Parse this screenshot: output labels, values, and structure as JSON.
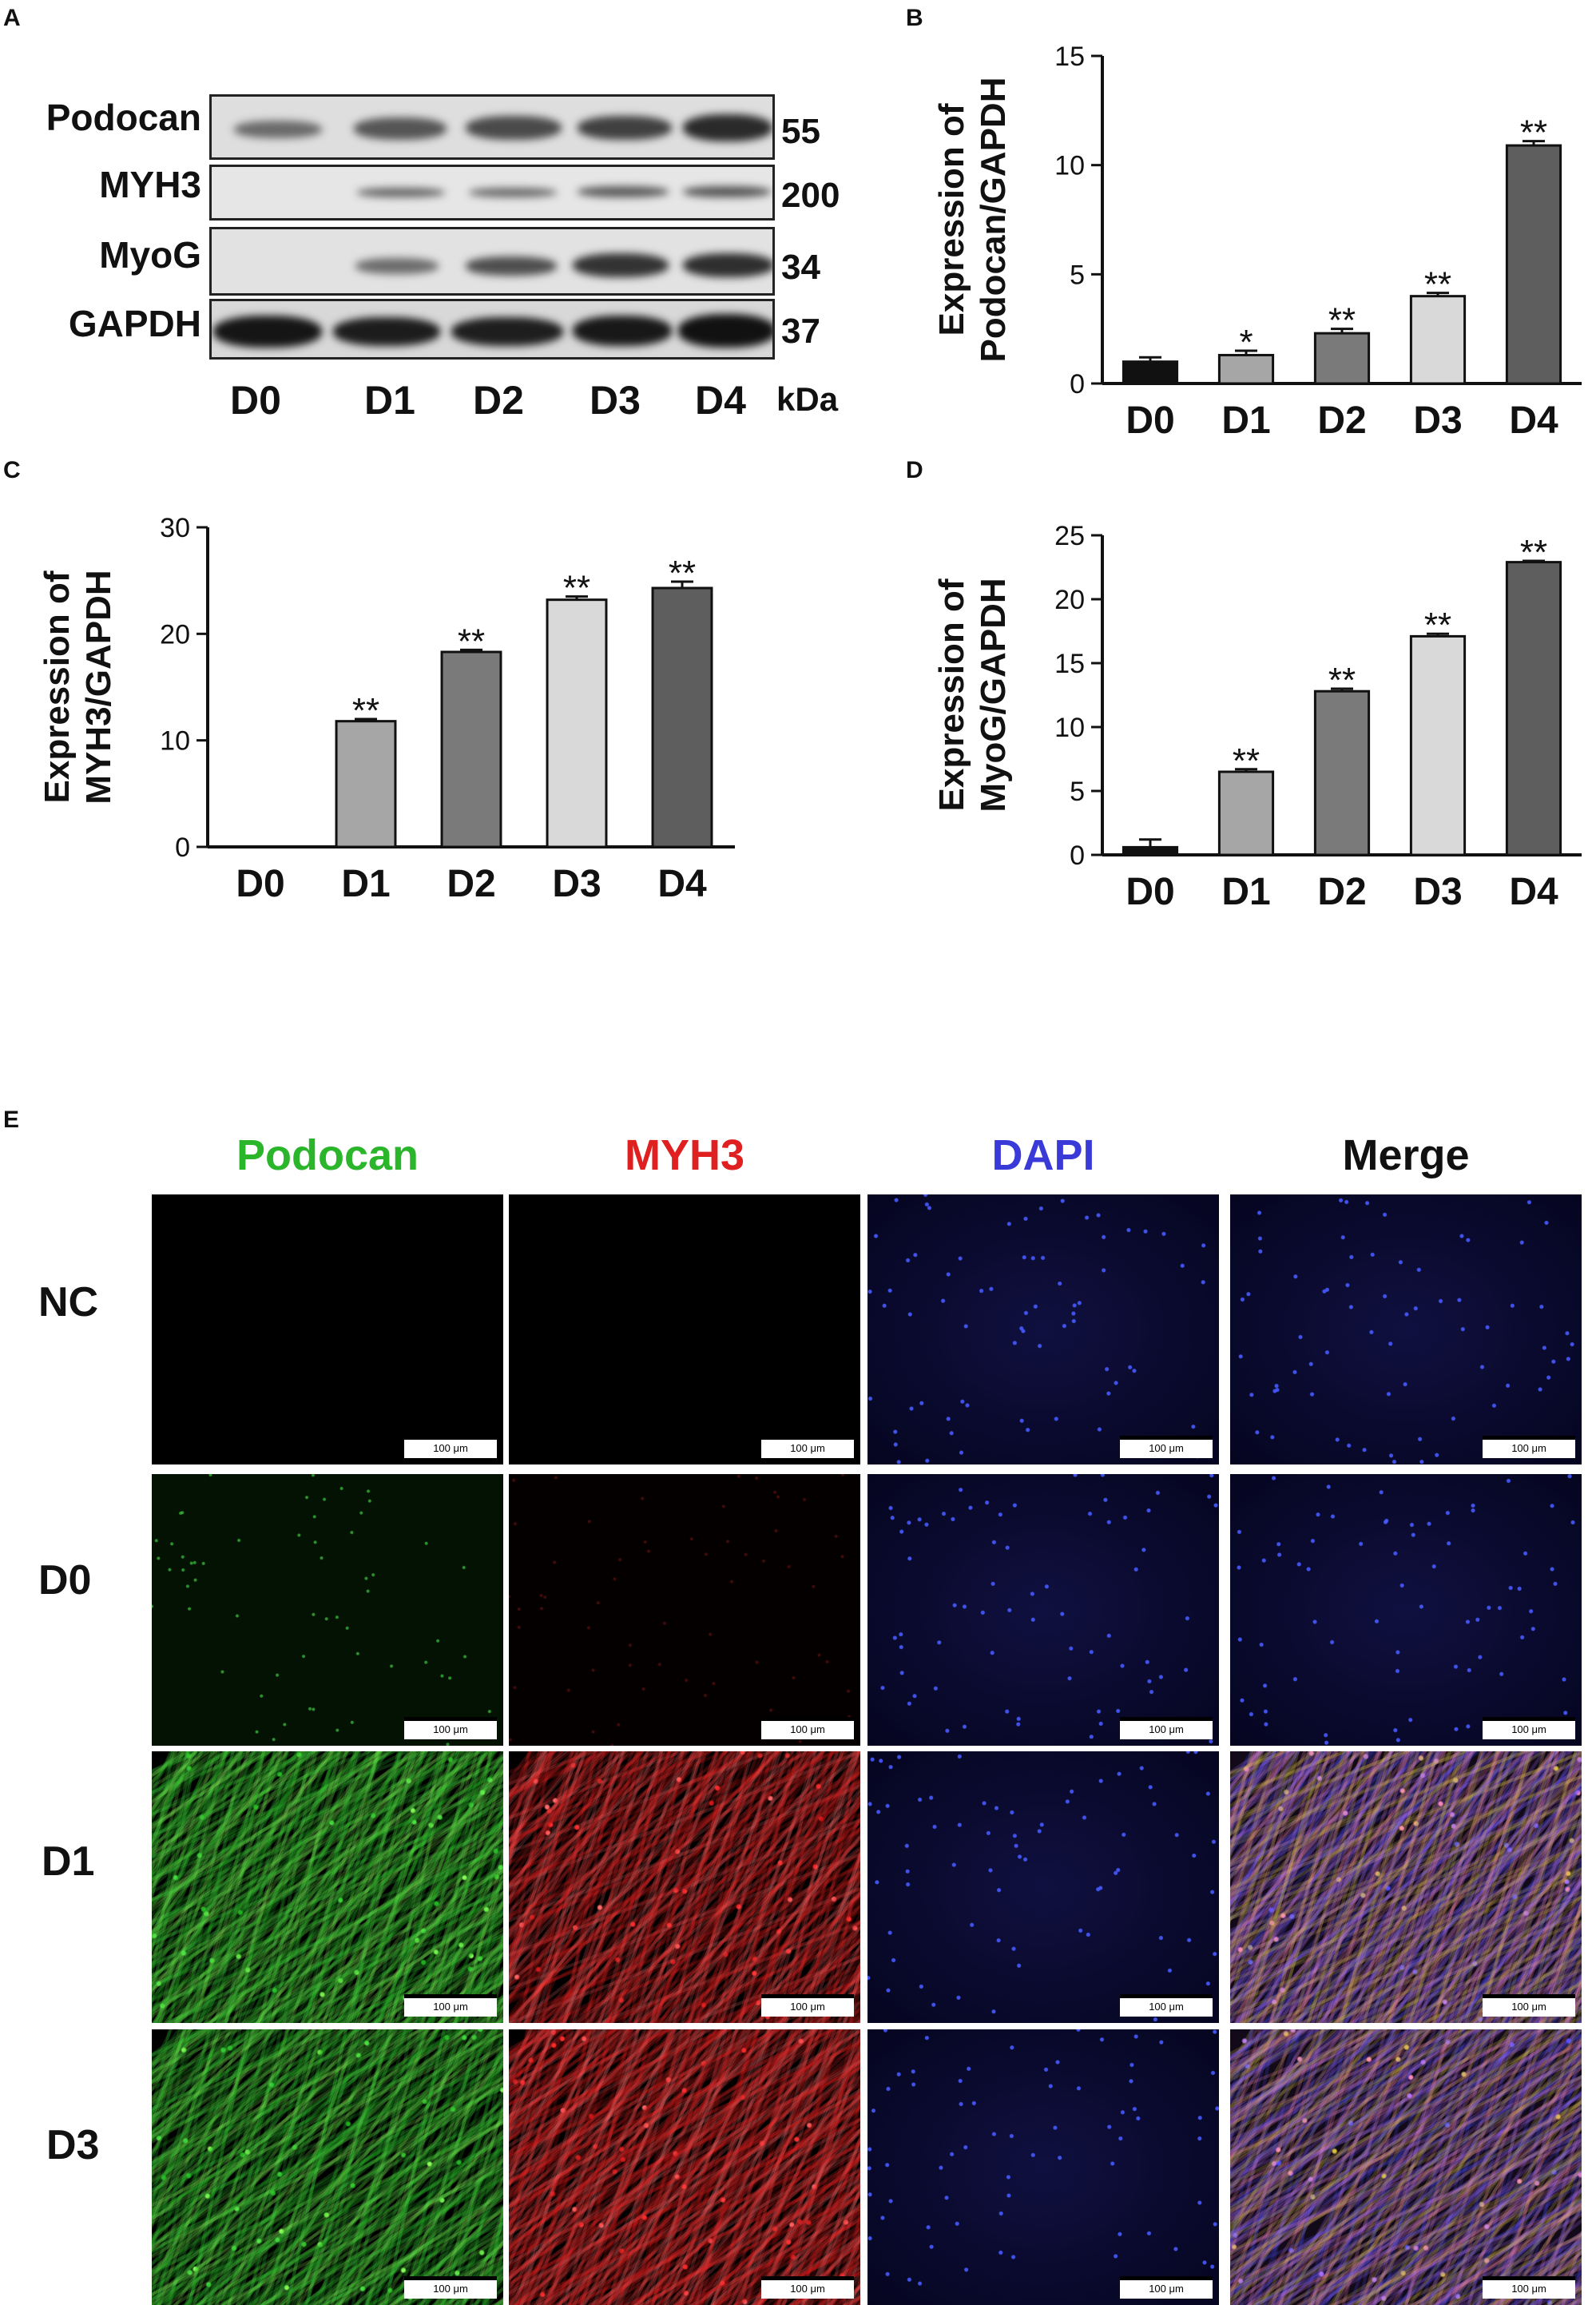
{
  "panel_letters": {
    "a": "A",
    "b": "B",
    "c": "C",
    "d": "D",
    "e": "E"
  },
  "blot": {
    "rows": [
      {
        "name": "Podocan",
        "kda": "55"
      },
      {
        "name": "MYH3",
        "kda": "200"
      },
      {
        "name": "MyoG",
        "kda": "34"
      },
      {
        "name": "GAPDH",
        "kda": "37"
      }
    ],
    "lanes": [
      "D0",
      "D1",
      "D2",
      "D3",
      "D4"
    ],
    "kda_label": "kDa"
  },
  "chart_data": [
    {
      "panel": "B",
      "type": "bar",
      "ylabel_line1": "Expression of",
      "ylabel_line2": "Podocan/GAPDH",
      "categories": [
        "D0",
        "D1",
        "D2",
        "D3",
        "D4"
      ],
      "values": [
        1.0,
        1.3,
        2.3,
        4.0,
        10.9
      ],
      "errors": [
        0.2,
        0.2,
        0.2,
        0.15,
        0.2
      ],
      "significance": [
        "",
        "*",
        "**",
        "**",
        "**"
      ],
      "ylim": [
        0,
        15
      ],
      "yticks": [
        0,
        5,
        10,
        15
      ],
      "colors": [
        "#111111",
        "#a6a6a6",
        "#7a7a7a",
        "#d9d9d9",
        "#5e5e5e"
      ]
    },
    {
      "panel": "C",
      "type": "bar",
      "ylabel_line1": "Expression of",
      "ylabel_line2": "MYH3/GAPDH",
      "categories": [
        "D0",
        "D1",
        "D2",
        "D3",
        "D4"
      ],
      "values": [
        0,
        11.8,
        18.3,
        23.2,
        24.3
      ],
      "errors": [
        0,
        0.2,
        0.2,
        0.3,
        0.6
      ],
      "significance": [
        "",
        "**",
        "**",
        "**",
        "**"
      ],
      "ylim": [
        0,
        30
      ],
      "yticks": [
        0,
        10,
        20,
        30
      ],
      "colors": [
        "#111111",
        "#a6a6a6",
        "#7a7a7a",
        "#d9d9d9",
        "#5e5e5e"
      ]
    },
    {
      "panel": "D",
      "type": "bar",
      "ylabel_line1": "Expression of",
      "ylabel_line2": "MyoG/GAPDH",
      "categories": [
        "D0",
        "D1",
        "D2",
        "D3",
        "D4"
      ],
      "values": [
        0.6,
        6.5,
        12.8,
        17.1,
        22.9
      ],
      "errors": [
        0.6,
        0.2,
        0.2,
        0.2,
        0.1
      ],
      "significance": [
        "",
        "**",
        "**",
        "**",
        "**"
      ],
      "ylim": [
        0,
        25
      ],
      "yticks": [
        0,
        5,
        10,
        15,
        20,
        25
      ],
      "colors": [
        "#111111",
        "#a6a6a6",
        "#7a7a7a",
        "#d9d9d9",
        "#5e5e5e"
      ]
    }
  ],
  "micro": {
    "columns": [
      "Podocan",
      "MYH3",
      "DAPI",
      "Merge"
    ],
    "column_colors": [
      "#2bb52b",
      "#e02020",
      "#3a3ad8",
      "#111111"
    ],
    "rows": [
      "NC",
      "D0",
      "D1",
      "D3"
    ],
    "scale_label": "100 μm"
  }
}
